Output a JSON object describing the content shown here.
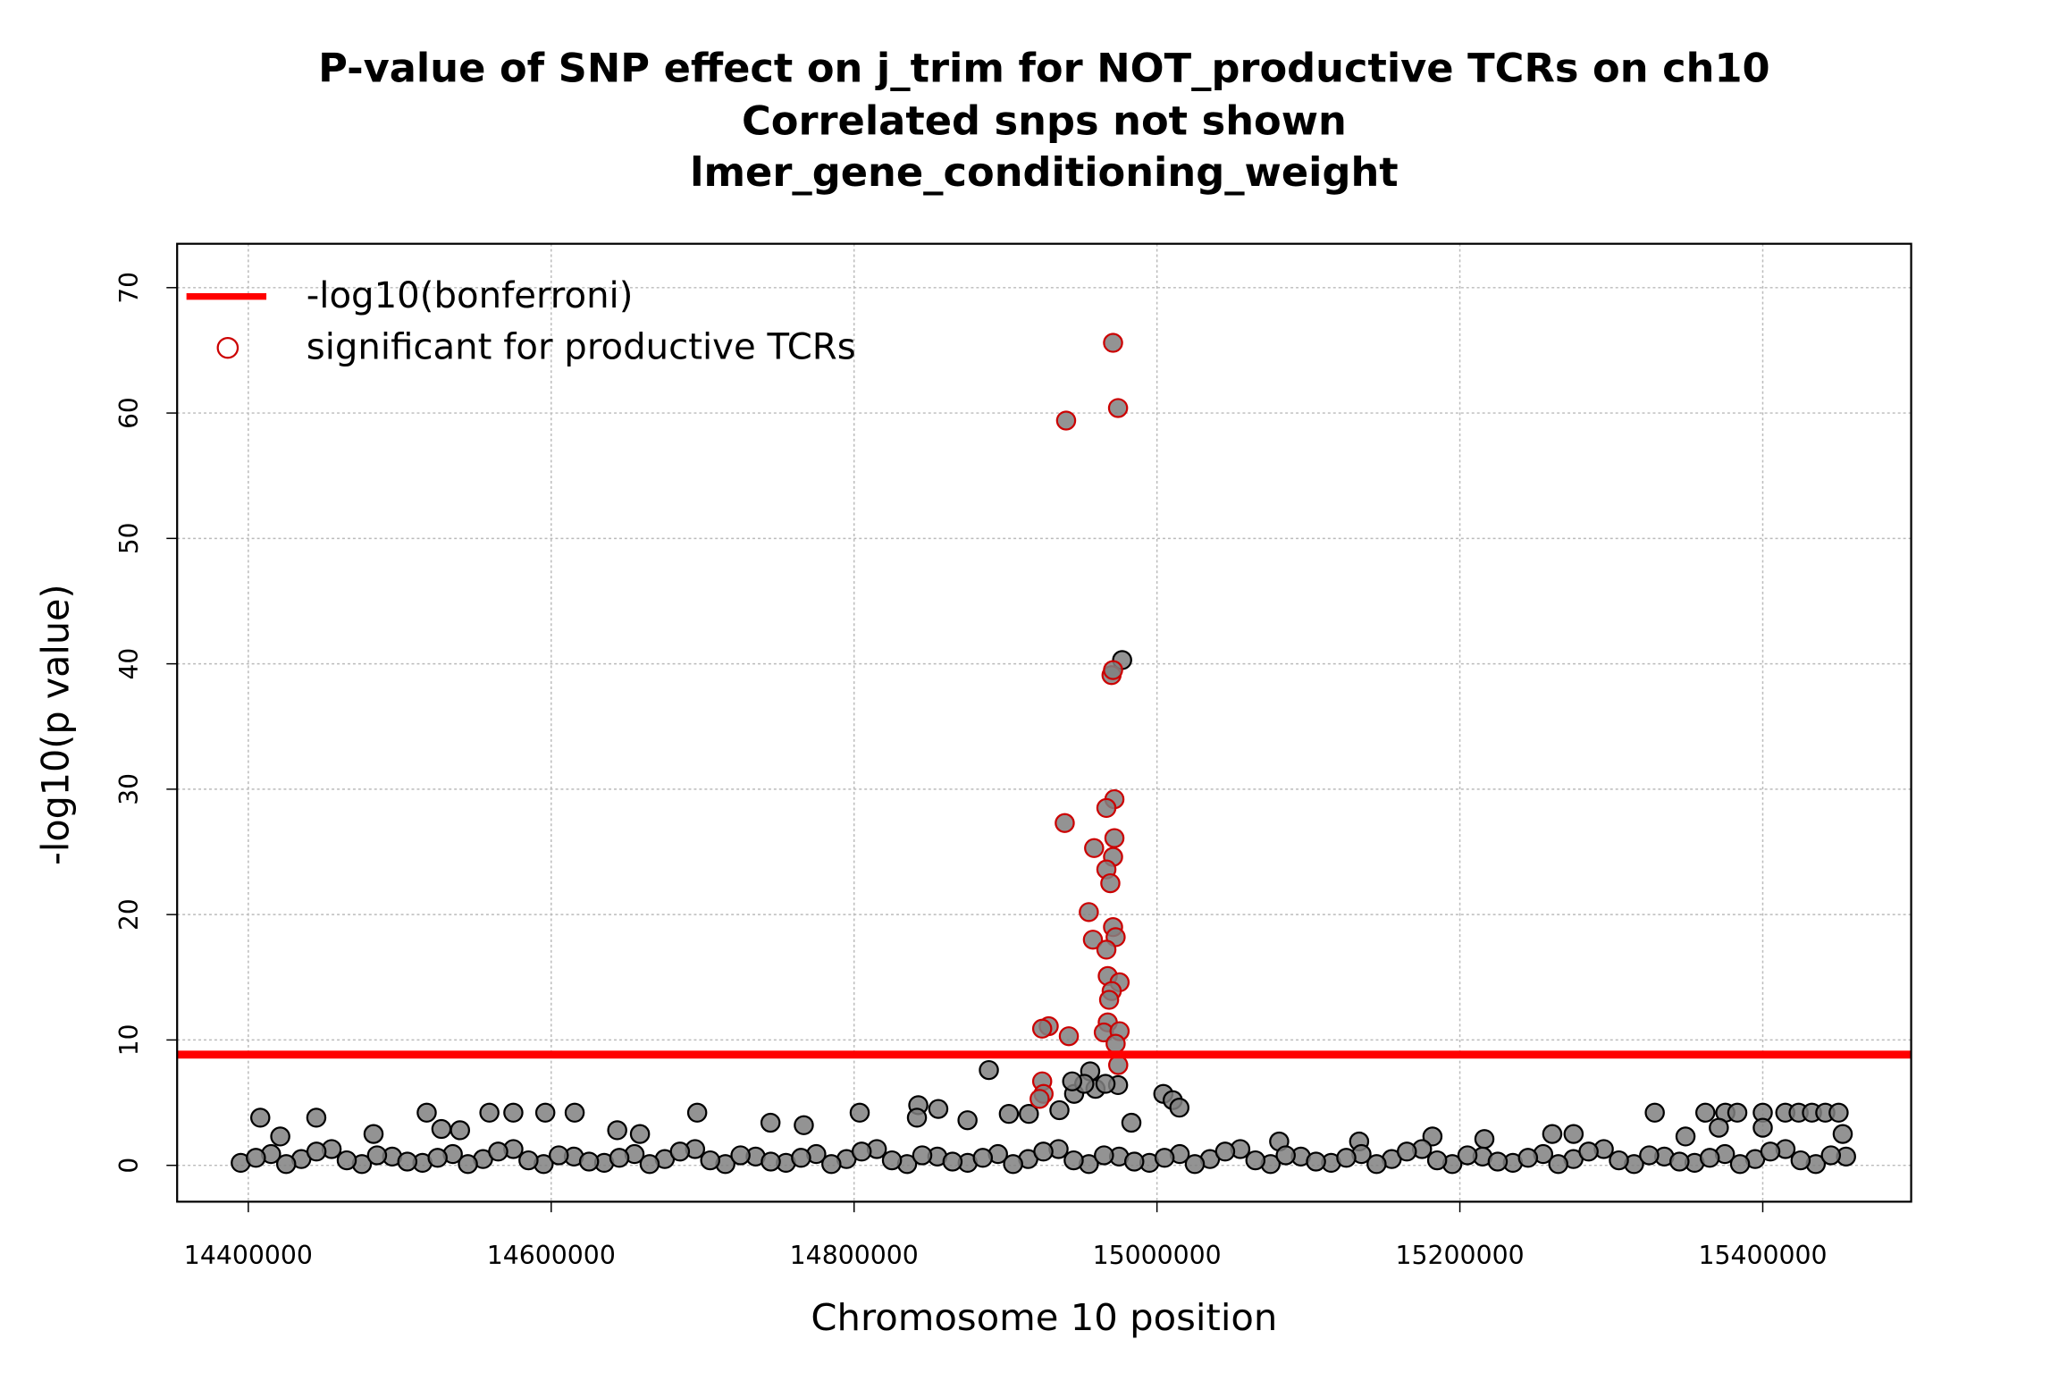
{
  "chart_data": {
    "type": "scatter",
    "title_lines": [
      "P-value of SNP effect on j_trim for NOT_productive TCRs on ch10",
      "Correlated snps not shown",
      "lmer_gene_conditioning_weight"
    ],
    "xlabel": "Chromosome 10 position",
    "ylabel": "-log10(p value)",
    "xlim": [
      14353000,
      15498000
    ],
    "ylim": [
      -2.9,
      73.5
    ],
    "xticks": [
      14400000,
      14600000,
      14800000,
      15000000,
      15200000,
      15400000
    ],
    "yticks": [
      0,
      10,
      20,
      30,
      40,
      50,
      60,
      70
    ],
    "grid": true,
    "legend": "topleft",
    "marker_fill": "#808080",
    "hline": {
      "name": "-log10(bonferroni)",
      "value": 8.83,
      "color": "#ff0000"
    },
    "series": [
      {
        "color": "#000000",
        "x": [
          14407900,
          14444900,
          14517800,
          14559200,
          14575000,
          14596100,
          14615500,
          14696400,
          14527500,
          14539800,
          14643600,
          14744800,
          14766800,
          14803700,
          14842400,
          14855600,
          14841500,
          14874900,
          14902200,
          14915400,
          14935600,
          14945300,
          14959400,
          14955900,
          14974300,
          15004200,
          15010400,
          15014800,
          14983100,
          15181900,
          15216200,
          15261000,
          15275100,
          15328700,
          15362100,
          15375300,
          15383200,
          15400000,
          15414900,
          15423700,
          15432500,
          15441300,
          15450100,
          15400000,
          15371000,
          15349000,
          15452800,
          14421100,
          14482700,
          14658600,
          15080700,
          15133500,
          14977000,
          14889000,
          14952000,
          14944000,
          14966000,
          14395000,
          14415000,
          14435000,
          14455000,
          14475000,
          14495000,
          14515000,
          14535000,
          14555000,
          14575000,
          14595000,
          14615000,
          14635000,
          14655000,
          14675000,
          14695000,
          14715000,
          14735000,
          14755000,
          14775000,
          14795000,
          14815000,
          14835000,
          14855000,
          14875000,
          14895000,
          14915000,
          14935000,
          14955000,
          14975000,
          14995000,
          15015000,
          15035000,
          15055000,
          15075000,
          15095000,
          15115000,
          15135000,
          15155000,
          15175000,
          15195000,
          15215000,
          15235000,
          15255000,
          15275000,
          15295000,
          15315000,
          15335000,
          15355000,
          15375000,
          15395000,
          15415000,
          15435000,
          15455000,
          14405000,
          14425000,
          14445000,
          14465000,
          14485000,
          14505000,
          14525000,
          14545000,
          14565000,
          14585000,
          14605000,
          14625000,
          14645000,
          14665000,
          14685000,
          14705000,
          14725000,
          14745000,
          14765000,
          14785000,
          14805000,
          14825000,
          14845000,
          14865000,
          14885000,
          14905000,
          14925000,
          14945000,
          14965000,
          14985000,
          15005000,
          15025000,
          15045000,
          15065000,
          15085000,
          15105000,
          15125000,
          15145000,
          15165000,
          15185000,
          15205000,
          15225000,
          15245000,
          15265000,
          15285000,
          15305000,
          15325000,
          15345000,
          15365000,
          15385000,
          15405000,
          15425000,
          15445000
        ],
        "values": [
          3.8,
          3.8,
          4.2,
          4.2,
          4.2,
          4.2,
          4.2,
          4.2,
          2.9,
          2.8,
          2.8,
          3.4,
          3.2,
          4.2,
          4.8,
          4.5,
          3.8,
          3.6,
          4.1,
          4.1,
          4.4,
          5.7,
          6.1,
          7.5,
          6.4,
          5.7,
          5.2,
          4.6,
          3.4,
          2.3,
          2.1,
          2.5,
          2.5,
          4.2,
          4.2,
          4.2,
          4.2,
          4.2,
          4.2,
          4.2,
          4.2,
          4.2,
          4.2,
          3.0,
          3.0,
          2.3,
          2.5,
          2.3,
          2.5,
          2.5,
          1.9,
          1.9,
          40.3,
          7.6,
          6.5,
          6.7,
          6.5,
          0.2,
          0.9,
          0.5,
          1.3,
          0.1,
          0.7,
          0.2,
          0.9,
          0.5,
          1.3,
          0.1,
          0.7,
          0.2,
          0.9,
          0.5,
          1.3,
          0.1,
          0.7,
          0.2,
          0.9,
          0.5,
          1.3,
          0.1,
          0.7,
          0.2,
          0.9,
          0.5,
          1.3,
          0.1,
          0.7,
          0.2,
          0.9,
          0.5,
          1.3,
          0.1,
          0.7,
          0.2,
          0.9,
          0.5,
          1.3,
          0.1,
          0.7,
          0.2,
          0.9,
          0.5,
          1.3,
          0.1,
          0.7,
          0.2,
          0.9,
          0.5,
          1.3,
          0.1,
          0.7,
          0.6,
          0.1,
          1.1,
          0.4,
          0.8,
          0.3,
          0.6,
          0.1,
          1.1,
          0.4,
          0.8,
          0.3,
          0.6,
          0.1,
          1.1,
          0.4,
          0.8,
          0.3,
          0.6,
          0.1,
          1.1,
          0.4,
          0.8,
          0.3,
          0.6,
          0.1,
          1.1,
          0.4,
          0.8,
          0.3,
          0.6,
          0.1,
          1.1,
          0.4,
          0.8,
          0.3,
          0.6,
          0.1,
          1.1,
          0.4,
          0.8,
          0.3,
          0.6,
          0.1,
          1.1,
          0.4,
          0.8,
          0.3,
          0.6,
          0.1,
          1.1,
          0.4,
          0.8
        ]
      },
      {
        "name": "significant for productive TCRs",
        "color": "#cc0000",
        "x": [
          14971000,
          14974300,
          14940000,
          14970000,
          14971000,
          14939100,
          14971900,
          14966600,
          14971900,
          14958500,
          14971000,
          14966600,
          14969200,
          14955000,
          14971000,
          14972700,
          14957700,
          14966600,
          14967500,
          14975300,
          14970100,
          14968400,
          14967500,
          14928500,
          14924200,
          14964900,
          14975300,
          14941800,
          14972700,
          14974400,
          14924200,
          14925100,
          14922500
        ],
        "values": [
          65.6,
          60.4,
          59.4,
          39.1,
          39.5,
          27.3,
          29.2,
          28.5,
          26.1,
          25.3,
          24.6,
          23.6,
          22.5,
          20.2,
          19.0,
          18.2,
          18.0,
          17.2,
          15.1,
          14.6,
          13.9,
          13.2,
          11.4,
          11.1,
          10.9,
          10.6,
          10.7,
          10.3,
          9.7,
          8.0,
          6.7,
          5.7,
          5.3
        ]
      }
    ]
  }
}
